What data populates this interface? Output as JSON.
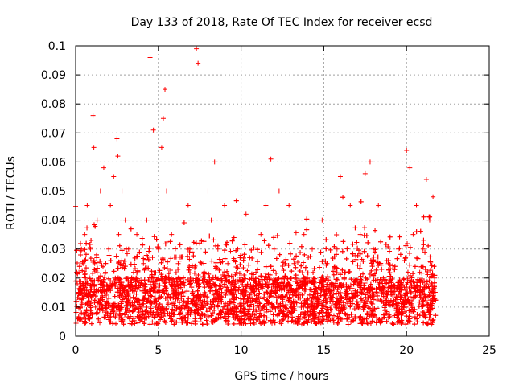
{
  "chart_data": {
    "type": "scatter",
    "title": "Day 133 of 2018, Rate Of TEC Index for receiver ecsd",
    "xlabel": "GPS time / hours",
    "ylabel": "ROTI / TECUs",
    "xlim": [
      0,
      25
    ],
    "ylim": [
      0,
      0.1
    ],
    "x_ticks": [
      0,
      5,
      10,
      15,
      20,
      25
    ],
    "x_tick_labels": [
      "0",
      "5",
      "10",
      "15",
      "20",
      "25"
    ],
    "y_ticks": [
      0,
      0.01,
      0.02,
      0.03,
      0.04,
      0.05,
      0.06,
      0.07,
      0.08,
      0.09,
      0.1
    ],
    "y_tick_labels": [
      "0",
      "0.01",
      "0.02",
      "0.03",
      "0.04",
      "0.05",
      "0.06",
      "0.07",
      "0.08",
      "0.09",
      "0.1"
    ],
    "grid": true,
    "marker": "+",
    "marker_color": "#ff0000",
    "series": [
      {
        "x": [
          0.05,
          0.1,
          0.15,
          0.2,
          0.3,
          0.35,
          0.4,
          0.45,
          0.5,
          0.55,
          0.6,
          0.7,
          0.8,
          0.9,
          1.0,
          1.05,
          1.1,
          1.15,
          1.2,
          1.3,
          1.4,
          1.5,
          1.6,
          1.7,
          1.8,
          1.9,
          2.0,
          2.1,
          2.2,
          2.3,
          2.4,
          2.5,
          2.55,
          2.6,
          2.7,
          2.8,
          2.9,
          3.0,
          3.1,
          3.2,
          3.3,
          3.5,
          3.7,
          3.9,
          4.1,
          4.3,
          4.5,
          4.6,
          4.7,
          4.8,
          5.0,
          5.2,
          5.3,
          5.4,
          5.5,
          5.6,
          5.8,
          6.0,
          6.2,
          6.5,
          6.8,
          7.0,
          7.3,
          7.4,
          7.6,
          7.8,
          8.0,
          8.2,
          8.4,
          8.5,
          8.6,
          8.8,
          9.0,
          9.2,
          9.5,
          9.8,
          10.0,
          10.3,
          10.6,
          10.9,
          11.2,
          11.5,
          11.8,
          12.0,
          12.3,
          12.6,
          12.9,
          13.2,
          13.5,
          13.8,
          14.0,
          14.3,
          14.6,
          14.9,
          15.2,
          15.5,
          15.8,
          16.0,
          16.3,
          16.6,
          16.9,
          17.2,
          17.5,
          17.8,
          18.0,
          18.3,
          18.6,
          18.9,
          19.2,
          19.5,
          19.8,
          20.0,
          20.2,
          20.4,
          20.6,
          20.8,
          21.0,
          21.2,
          21.4,
          21.6,
          21.7
        ],
        "y": [
          0.012,
          0.018,
          0.006,
          0.022,
          0.01,
          0.03,
          0.015,
          0.025,
          0.008,
          0.035,
          0.02,
          0.045,
          0.012,
          0.03,
          0.018,
          0.076,
          0.065,
          0.025,
          0.01,
          0.04,
          0.02,
          0.05,
          0.015,
          0.058,
          0.022,
          0.012,
          0.03,
          0.045,
          0.018,
          0.055,
          0.02,
          0.068,
          0.062,
          0.035,
          0.015,
          0.05,
          0.025,
          0.04,
          0.012,
          0.03,
          0.018,
          0.022,
          0.035,
          0.01,
          0.025,
          0.04,
          0.096,
          0.02,
          0.071,
          0.015,
          0.03,
          0.065,
          0.075,
          0.085,
          0.05,
          0.02,
          0.035,
          0.015,
          0.025,
          0.018,
          0.045,
          0.012,
          0.099,
          0.094,
          0.025,
          0.015,
          0.05,
          0.04,
          0.06,
          0.02,
          0.03,
          0.012,
          0.045,
          0.025,
          0.018,
          0.03,
          0.02,
          0.042,
          0.015,
          0.022,
          0.035,
          0.045,
          0.061,
          0.03,
          0.05,
          0.02,
          0.045,
          0.025,
          0.015,
          0.035,
          0.02,
          0.03,
          0.012,
          0.04,
          0.025,
          0.018,
          0.03,
          0.055,
          0.022,
          0.045,
          0.015,
          0.035,
          0.056,
          0.06,
          0.03,
          0.045,
          0.02,
          0.025,
          0.015,
          0.03,
          0.012,
          0.064,
          0.058,
          0.035,
          0.045,
          0.022,
          0.03,
          0.054,
          0.04,
          0.048,
          0.02
        ]
      }
    ]
  }
}
